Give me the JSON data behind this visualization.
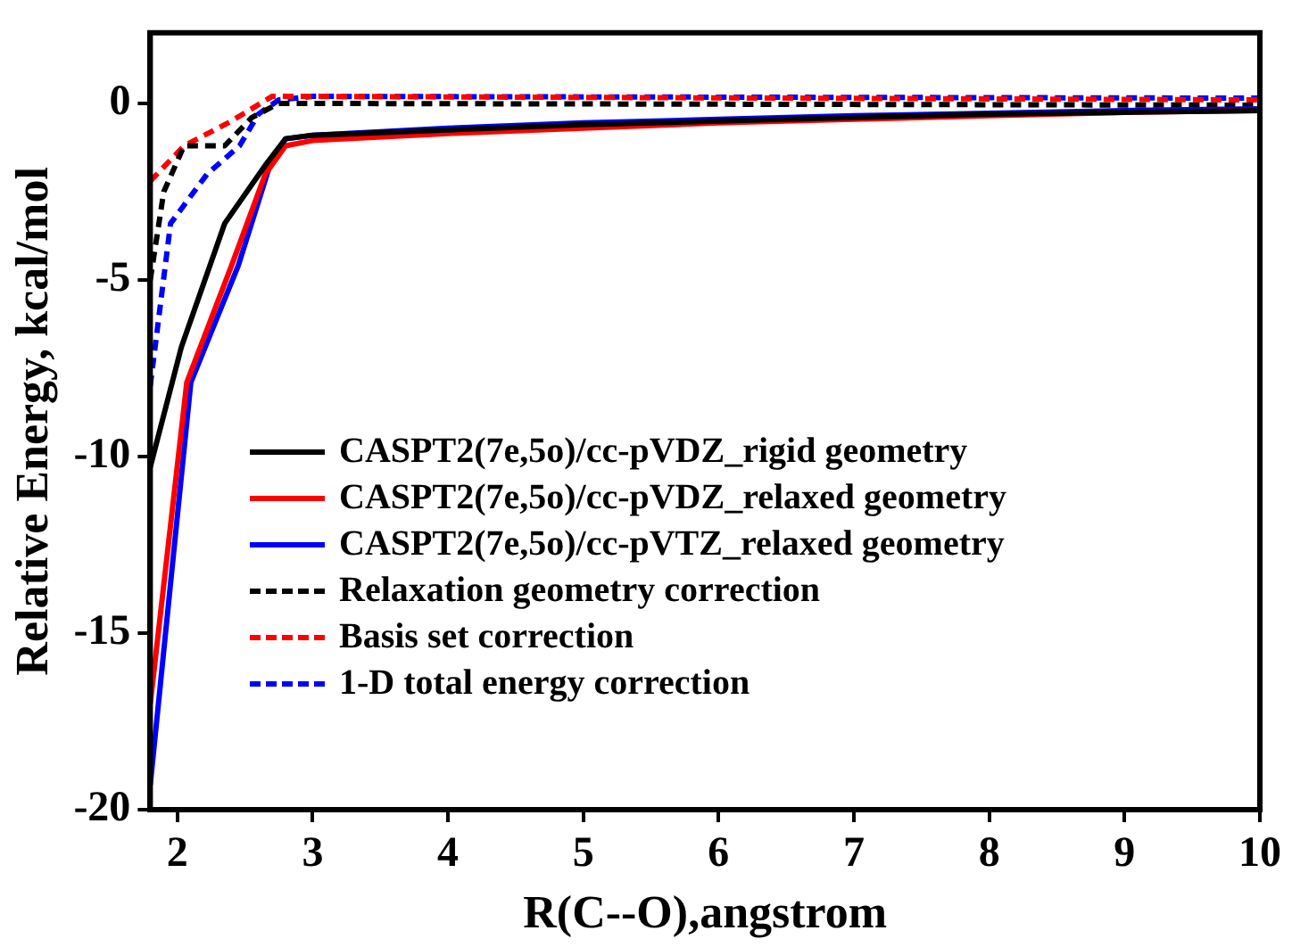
{
  "chart_data": {
    "type": "line",
    "xlabel": "R(C--O),angstrom",
    "ylabel": "Relative Energy, kcal/mol",
    "xlim": [
      1.8,
      10
    ],
    "xticks": [
      2,
      3,
      4,
      5,
      6,
      7,
      8,
      9,
      10
    ],
    "ylim": [
      -20,
      2
    ],
    "yticks": [
      -20,
      -15,
      -10,
      -5,
      0
    ],
    "grid": false,
    "legend": "bottom",
    "marker": "none",
    "series": [
      {
        "name": "CASPT2(7e,5o)/cc-pVDZ_rigid geometry",
        "color": "#000000",
        "line_style": "solid",
        "x": [
          1.8,
          2.03,
          2.35,
          2.66,
          2.8,
          3,
          4,
          5,
          6,
          7,
          8,
          9,
          10
        ],
        "values": [
          -10.3,
          -6.9,
          -3.4,
          -1.7,
          -1.0,
          -0.9,
          -0.75,
          -0.6,
          -0.5,
          -0.4,
          -0.3,
          -0.25,
          -0.2
        ]
      },
      {
        "name": "CASPT2(7e,5o)/cc-pVDZ_relaxed geometry",
        "color": "#ff0000",
        "line_style": "solid",
        "x": [
          1.8,
          2.07,
          2.4,
          2.65,
          2.8,
          3,
          4,
          5,
          6,
          7,
          8,
          9,
          10
        ],
        "values": [
          -17,
          -7.9,
          -4.6,
          -2.0,
          -1.2,
          -1.05,
          -0.85,
          -0.7,
          -0.55,
          -0.45,
          -0.35,
          -0.25,
          -0.2
        ]
      },
      {
        "name": "CASPT2(7e,5o)/cc-pVTZ_relaxed geometry",
        "color": "#0000ff",
        "line_style": "solid",
        "x": [
          1.8,
          2.1,
          2.45,
          2.68,
          2.8,
          3,
          4,
          5,
          6,
          7,
          8,
          9,
          10
        ],
        "values": [
          -19.3,
          -7.9,
          -4.6,
          -1.8,
          -1.0,
          -0.9,
          -0.7,
          -0.55,
          -0.45,
          -0.35,
          -0.28,
          -0.2,
          -0.15
        ]
      },
      {
        "name": "Relaxation geometry correction",
        "color": "#000000",
        "line_style": "dashed",
        "x": [
          1.8,
          1.9,
          2.05,
          2.35,
          2.55,
          2.75,
          3,
          10
        ],
        "values": [
          -5,
          -2.5,
          -1.2,
          -1.2,
          -0.4,
          0,
          0,
          -0.05
        ]
      },
      {
        "name": "Basis set correction",
        "color": "#ff0000",
        "line_style": "dashed",
        "x": [
          1.8,
          2.05,
          2.4,
          2.7,
          3,
          10
        ],
        "values": [
          -2.2,
          -1.2,
          -0.5,
          0.2,
          0.2,
          0.1
        ]
      },
      {
        "name": "1-D total energy correction",
        "color": "#0000ff",
        "line_style": "dashed",
        "x": [
          1.8,
          1.95,
          2.22,
          2.46,
          2.6,
          2.75,
          3,
          10
        ],
        "values": [
          -8,
          -3.4,
          -2.0,
          -1.2,
          -0.3,
          0.1,
          0.2,
          0.15
        ]
      }
    ]
  }
}
